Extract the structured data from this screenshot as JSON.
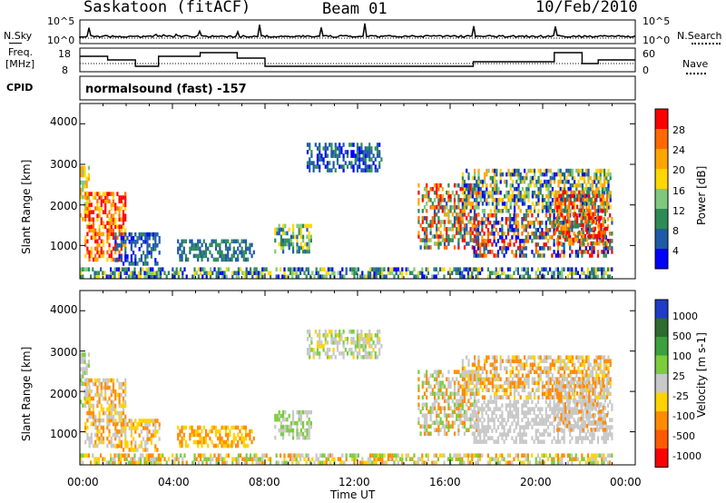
{
  "header": {
    "site": "Saskatoon (fitACF)",
    "beam": "Beam 01",
    "date": "10/Feb/2010"
  },
  "top_panels": {
    "nsky_label": "N.Sky",
    "nsky_ticks": [
      "10^5",
      "10^0"
    ],
    "nsearch_label": "N.Search",
    "nsearch_ticks": [
      "10^5",
      "10^0"
    ],
    "freq_label_line1": "Freq.",
    "freq_label_line2": "[MHz]",
    "freq_ticks": [
      "18",
      "8"
    ],
    "nave_label": "Nave",
    "nave_ticks": [
      "60",
      "0"
    ],
    "cpid_label": "CPID",
    "cpid_text": "normalsound (fast) -157"
  },
  "colors": {
    "power_scale": [
      "#0000ff",
      "#1e5aa8",
      "#2e8b57",
      "#7fc97f",
      "#ffd700",
      "#ffa500",
      "#ff6a00",
      "#ff0000"
    ],
    "velocity_scale": [
      "#1e3cc8",
      "#2e6b2e",
      "#3ca03c",
      "#7ccd3c",
      "#c8c8c8",
      "#ffd200",
      "#ff8c00",
      "#ff5a00",
      "#ff0000"
    ]
  },
  "chart_data": [
    {
      "type": "heatmap",
      "panel": "power",
      "ylabel": "Slant Range [km]",
      "ylim": [
        180,
        4500
      ],
      "y_ticks": [
        "4000",
        "3000",
        "2000",
        "1000"
      ],
      "xlim": [
        "00:00",
        "24:00"
      ],
      "colorbar_label": "Power [dB]",
      "colorbar_ticks": [
        "28",
        "24",
        "20",
        "16",
        "12",
        "8",
        "4"
      ],
      "colorbar_range": [
        0,
        32
      ]
    },
    {
      "type": "heatmap",
      "panel": "velocity",
      "ylabel": "Slant Range [km]",
      "ylim": [
        180,
        4500
      ],
      "y_ticks": [
        "4000",
        "3000",
        "2000",
        "1000"
      ],
      "x_ticks": [
        "00:00",
        "04:00",
        "08:00",
        "12:00",
        "16:00",
        "20:00",
        "00:00"
      ],
      "xlabel": "Time UT",
      "colorbar_label": "Velocity [m s-1]",
      "colorbar_ticks": [
        "1000",
        "500",
        "100",
        "25",
        "-25",
        "-100",
        "-500",
        "-1000"
      ]
    }
  ]
}
